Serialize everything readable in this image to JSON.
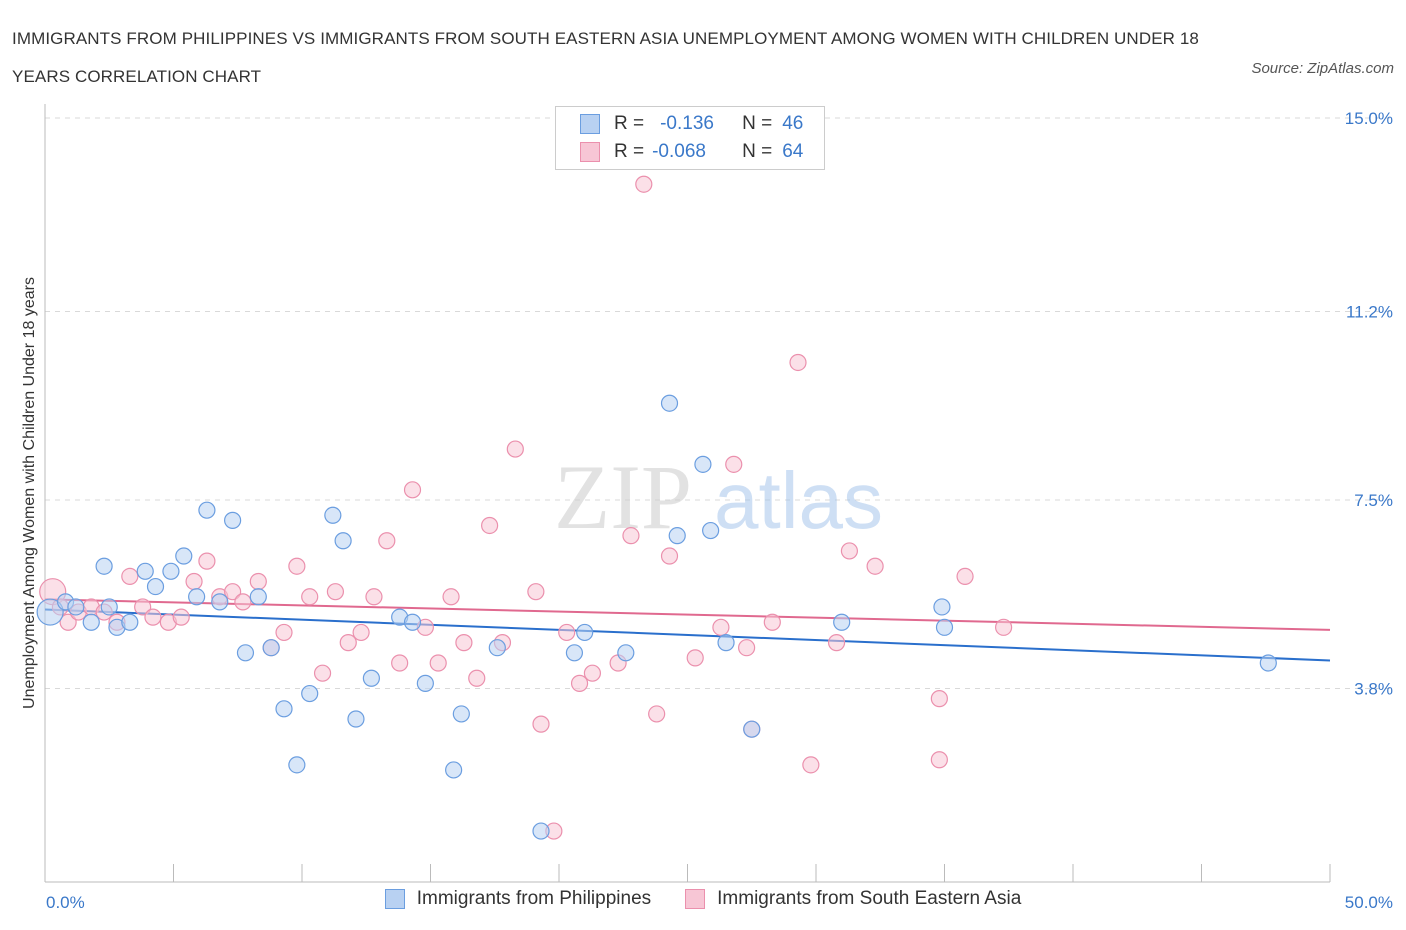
{
  "title": "IMMIGRANTS FROM PHILIPPINES VS IMMIGRANTS FROM SOUTH EASTERN ASIA UNEMPLOYMENT AMONG WOMEN WITH CHILDREN UNDER 18 YEARS CORRELATION CHART",
  "source": "Source: ZipAtlas.com",
  "watermark": {
    "zip": "ZIP",
    "atlas": "atlas"
  },
  "legend": {
    "rows": [
      {
        "r_label": "R =",
        "r_value": "-0.136",
        "n_label": "N =",
        "n_value": "46"
      },
      {
        "r_label": "R =",
        "r_value": "-0.068",
        "n_label": "N =",
        "n_value": "64"
      }
    ]
  },
  "bottom_legend": [
    "Immigrants from Philippines",
    "Immigrants from South Eastern Asia"
  ],
  "colors": {
    "blue_fill": "#b8d1f2",
    "blue_stroke": "#6b9ee0",
    "blue_line": "#2a6fcc",
    "pink_fill": "#f7c6d5",
    "pink_stroke": "#eb90ad",
    "pink_line": "#e0698f",
    "tick_text": "#3a78c9",
    "grid": "#d9d9d9"
  },
  "chart_data": {
    "type": "scatter",
    "title": "IMMIGRANTS FROM PHILIPPINES VS IMMIGRANTS FROM SOUTH EASTERN ASIA UNEMPLOYMENT AMONG WOMEN WITH CHILDREN UNDER 18 YEARS CORRELATION CHART",
    "xlabel": "",
    "ylabel": "Unemployment Among Women with Children Under 18 years",
    "xlim": [
      0,
      50
    ],
    "ylim": [
      0,
      15
    ],
    "x_tick_labels": [
      "0.0%",
      "50.0%"
    ],
    "y_ticks": [
      3.8,
      7.5,
      11.2,
      15.0
    ],
    "y_tick_labels": [
      "3.8%",
      "7.5%",
      "11.2%",
      "15.0%"
    ],
    "grid": "horizontal dashed",
    "legend_position": "top-center",
    "series": [
      {
        "name": "Immigrants from Philippines",
        "color": "#6b9ee0",
        "r": -0.136,
        "n": 46,
        "trend": {
          "y_at_x0": 5.35,
          "y_at_x50": 4.35
        },
        "points": [
          [
            0.2,
            5.3
          ],
          [
            0.8,
            5.5
          ],
          [
            1.2,
            5.4
          ],
          [
            1.8,
            5.1
          ],
          [
            2.3,
            6.2
          ],
          [
            2.5,
            5.4
          ],
          [
            2.8,
            5.0
          ],
          [
            3.3,
            5.1
          ],
          [
            3.9,
            6.1
          ],
          [
            4.3,
            5.8
          ],
          [
            4.9,
            6.1
          ],
          [
            5.4,
            6.4
          ],
          [
            5.9,
            5.6
          ],
          [
            6.3,
            7.3
          ],
          [
            6.8,
            5.5
          ],
          [
            7.3,
            7.1
          ],
          [
            7.8,
            4.5
          ],
          [
            8.3,
            5.6
          ],
          [
            8.8,
            4.6
          ],
          [
            9.3,
            3.4
          ],
          [
            9.8,
            2.3
          ],
          [
            10.3,
            3.7
          ],
          [
            11.2,
            7.2
          ],
          [
            11.6,
            6.7
          ],
          [
            12.1,
            3.2
          ],
          [
            12.7,
            4.0
          ],
          [
            13.8,
            5.2
          ],
          [
            14.3,
            5.1
          ],
          [
            14.8,
            3.9
          ],
          [
            15.9,
            2.2
          ],
          [
            16.2,
            3.3
          ],
          [
            17.6,
            4.6
          ],
          [
            19.3,
            1.0
          ],
          [
            20.6,
            4.5
          ],
          [
            21.0,
            4.9
          ],
          [
            22.6,
            4.5
          ],
          [
            24.3,
            9.4
          ],
          [
            24.6,
            6.8
          ],
          [
            25.6,
            8.2
          ],
          [
            25.9,
            6.9
          ],
          [
            26.5,
            4.7
          ],
          [
            27.5,
            3.0
          ],
          [
            31.0,
            5.1
          ],
          [
            34.9,
            5.4
          ],
          [
            35.0,
            5.0
          ],
          [
            47.6,
            4.3
          ]
        ]
      },
      {
        "name": "Immigrants from South Eastern Asia",
        "color": "#eb90ad",
        "r": -0.068,
        "n": 64,
        "trend": {
          "y_at_x0": 5.55,
          "y_at_x50": 4.95
        },
        "points": [
          [
            0.3,
            5.7
          ],
          [
            0.6,
            5.4
          ],
          [
            0.9,
            5.1
          ],
          [
            1.3,
            5.3
          ],
          [
            1.8,
            5.4
          ],
          [
            2.3,
            5.3
          ],
          [
            2.8,
            5.1
          ],
          [
            3.3,
            6.0
          ],
          [
            3.8,
            5.4
          ],
          [
            4.2,
            5.2
          ],
          [
            4.8,
            5.1
          ],
          [
            5.3,
            5.2
          ],
          [
            5.8,
            5.9
          ],
          [
            6.3,
            6.3
          ],
          [
            6.8,
            5.6
          ],
          [
            7.3,
            5.7
          ],
          [
            7.7,
            5.5
          ],
          [
            8.3,
            5.9
          ],
          [
            8.8,
            4.6
          ],
          [
            9.3,
            4.9
          ],
          [
            9.8,
            6.2
          ],
          [
            10.3,
            5.6
          ],
          [
            10.8,
            4.1
          ],
          [
            11.3,
            5.7
          ],
          [
            11.8,
            4.7
          ],
          [
            12.3,
            4.9
          ],
          [
            12.8,
            5.6
          ],
          [
            13.3,
            6.7
          ],
          [
            13.8,
            4.3
          ],
          [
            14.3,
            7.7
          ],
          [
            14.8,
            5.0
          ],
          [
            15.3,
            4.3
          ],
          [
            15.8,
            5.6
          ],
          [
            16.3,
            4.7
          ],
          [
            16.8,
            4.0
          ],
          [
            17.3,
            7.0
          ],
          [
            17.8,
            4.7
          ],
          [
            18.3,
            8.5
          ],
          [
            19.1,
            5.7
          ],
          [
            19.3,
            3.1
          ],
          [
            19.8,
            1.0
          ],
          [
            20.3,
            4.9
          ],
          [
            20.8,
            3.9
          ],
          [
            21.3,
            4.1
          ],
          [
            22.3,
            4.3
          ],
          [
            22.8,
            6.8
          ],
          [
            23.3,
            13.7
          ],
          [
            23.8,
            3.3
          ],
          [
            24.3,
            6.4
          ],
          [
            25.3,
            4.4
          ],
          [
            26.3,
            5.0
          ],
          [
            26.8,
            8.2
          ],
          [
            27.3,
            4.6
          ],
          [
            27.5,
            3.0
          ],
          [
            28.3,
            5.1
          ],
          [
            29.3,
            10.2
          ],
          [
            29.8,
            2.3
          ],
          [
            30.8,
            4.7
          ],
          [
            31.3,
            6.5
          ],
          [
            32.3,
            6.2
          ],
          [
            34.8,
            3.6
          ],
          [
            34.8,
            2.4
          ],
          [
            35.8,
            6.0
          ],
          [
            37.3,
            5.0
          ]
        ]
      }
    ]
  }
}
